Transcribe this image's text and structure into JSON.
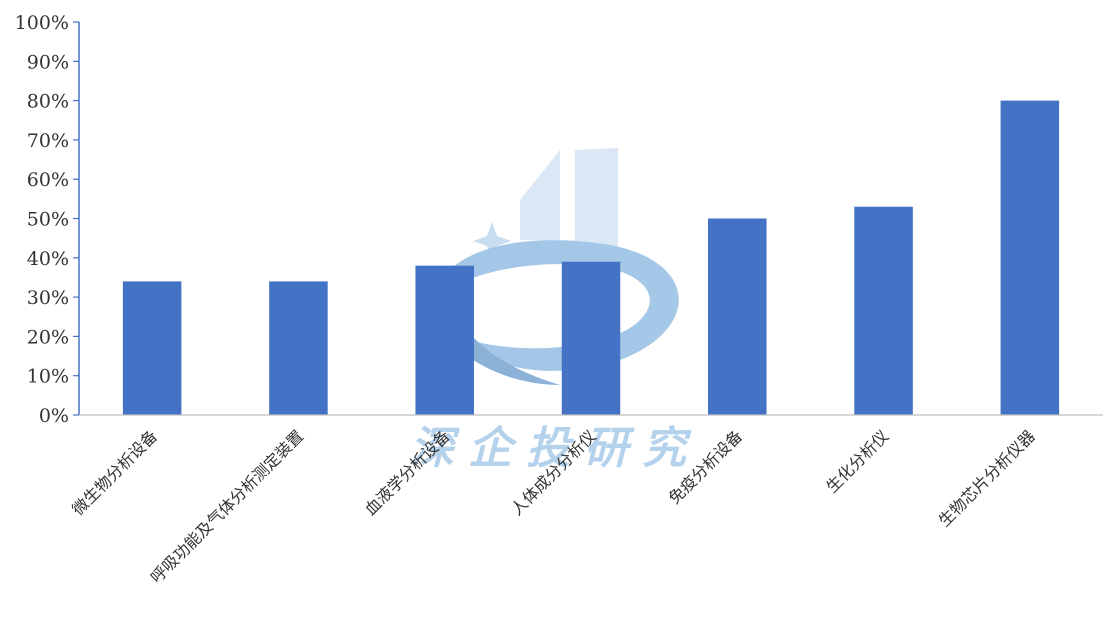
{
  "chart_data": {
    "type": "bar",
    "categories": [
      "微生物分析设备",
      "呼吸功能及气体分析测定装置",
      "血液学分析设备",
      "人体成分分析仪",
      "免疫分析设备",
      "生化分析仪",
      "生物芯片分析仪器"
    ],
    "values": [
      34,
      34,
      38,
      39,
      50,
      53,
      80
    ],
    "ylim": [
      0,
      100
    ],
    "ytick_step": 10,
    "y_tick_suffix": "%",
    "title": "",
    "xlabel": "",
    "ylabel": "",
    "grid": false,
    "bar_color": "#4472C4",
    "axis_color": "#4472C4"
  },
  "watermark": {
    "text": "深企投研究",
    "color": "#9DC3E6"
  }
}
